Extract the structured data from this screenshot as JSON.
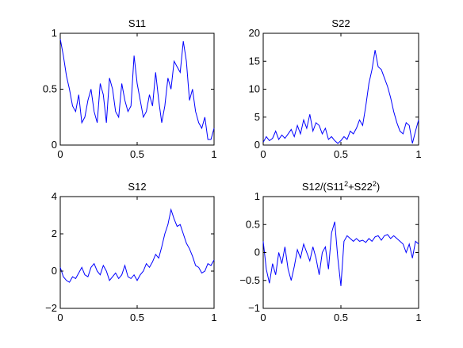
{
  "chart_data": [
    {
      "type": "line",
      "title": "S11",
      "xlim": [
        0,
        1
      ],
      "ylim": [
        0,
        1
      ],
      "xticks": [
        "0",
        "0.5",
        "1"
      ],
      "yticks": [
        "0",
        "0.5",
        "1"
      ],
      "color": "#0000ff",
      "x": [
        0,
        0.02,
        0.04,
        0.06,
        0.08,
        0.1,
        0.12,
        0.14,
        0.16,
        0.18,
        0.2,
        0.22,
        0.24,
        0.26,
        0.28,
        0.3,
        0.32,
        0.34,
        0.36,
        0.38,
        0.4,
        0.42,
        0.44,
        0.46,
        0.48,
        0.5,
        0.52,
        0.54,
        0.56,
        0.58,
        0.6,
        0.62,
        0.64,
        0.66,
        0.68,
        0.7,
        0.72,
        0.74,
        0.76,
        0.78,
        0.8,
        0.82,
        0.84,
        0.86,
        0.88,
        0.9,
        0.92,
        0.94,
        0.96,
        0.98,
        1.0
      ],
      "y": [
        0.95,
        0.8,
        0.62,
        0.5,
        0.35,
        0.3,
        0.45,
        0.2,
        0.25,
        0.4,
        0.5,
        0.3,
        0.2,
        0.55,
        0.45,
        0.2,
        0.6,
        0.5,
        0.3,
        0.25,
        0.55,
        0.4,
        0.3,
        0.35,
        0.8,
        0.55,
        0.4,
        0.25,
        0.3,
        0.45,
        0.35,
        0.65,
        0.4,
        0.2,
        0.35,
        0.6,
        0.5,
        0.75,
        0.7,
        0.65,
        0.93,
        0.75,
        0.4,
        0.5,
        0.3,
        0.2,
        0.15,
        0.25,
        0.05,
        0.05,
        0.15
      ]
    },
    {
      "type": "line",
      "title": "S22",
      "xlim": [
        0,
        1
      ],
      "ylim": [
        0,
        20
      ],
      "xticks": [
        "0",
        "0.5",
        "1"
      ],
      "yticks": [
        "0",
        "5",
        "10",
        "15",
        "20"
      ],
      "color": "#0000ff",
      "x": [
        0,
        0.02,
        0.04,
        0.06,
        0.08,
        0.1,
        0.12,
        0.14,
        0.16,
        0.18,
        0.2,
        0.22,
        0.24,
        0.26,
        0.28,
        0.3,
        0.32,
        0.34,
        0.36,
        0.38,
        0.4,
        0.42,
        0.44,
        0.46,
        0.48,
        0.5,
        0.52,
        0.54,
        0.56,
        0.58,
        0.6,
        0.62,
        0.64,
        0.66,
        0.68,
        0.7,
        0.72,
        0.74,
        0.76,
        0.78,
        0.8,
        0.82,
        0.84,
        0.86,
        0.88,
        0.9,
        0.92,
        0.94,
        0.96,
        0.98,
        1.0
      ],
      "y": [
        0.5,
        1.5,
        0.8,
        1.2,
        2.5,
        1.0,
        1.8,
        1.2,
        2.0,
        2.8,
        1.5,
        3.5,
        2.0,
        4.5,
        3.0,
        5.5,
        2.5,
        4.0,
        3.5,
        2.0,
        3.0,
        1.0,
        1.5,
        0.8,
        0.3,
        0.8,
        1.5,
        1.0,
        2.5,
        2.0,
        3.0,
        4.5,
        3.5,
        7.0,
        11.0,
        13.5,
        17.0,
        14.0,
        13.5,
        12.0,
        10.5,
        8.5,
        6.0,
        4.0,
        2.5,
        2.0,
        4.0,
        3.5,
        0.3,
        2.5,
        4.5
      ]
    },
    {
      "type": "line",
      "title": "S12",
      "xlim": [
        0,
        1
      ],
      "ylim": [
        -2,
        4
      ],
      "xticks": [
        "0",
        "0.5",
        "1"
      ],
      "yticks": [
        "−2",
        "0",
        "2",
        "4"
      ],
      "color": "#0000ff",
      "x": [
        0,
        0.02,
        0.04,
        0.06,
        0.08,
        0.1,
        0.12,
        0.14,
        0.16,
        0.18,
        0.2,
        0.22,
        0.24,
        0.26,
        0.28,
        0.3,
        0.32,
        0.34,
        0.36,
        0.38,
        0.4,
        0.42,
        0.44,
        0.46,
        0.48,
        0.5,
        0.52,
        0.54,
        0.56,
        0.58,
        0.6,
        0.62,
        0.64,
        0.66,
        0.68,
        0.7,
        0.72,
        0.74,
        0.76,
        0.78,
        0.8,
        0.82,
        0.84,
        0.86,
        0.88,
        0.9,
        0.92,
        0.94,
        0.96,
        0.98,
        1.0
      ],
      "y": [
        0.2,
        -0.3,
        -0.5,
        -0.6,
        -0.3,
        -0.4,
        -0.1,
        0.2,
        -0.2,
        -0.3,
        0.2,
        0.4,
        0.0,
        -0.2,
        0.3,
        0.0,
        -0.5,
        -0.3,
        -0.1,
        -0.4,
        -0.2,
        0.3,
        -0.3,
        -0.4,
        -0.2,
        -0.5,
        -0.2,
        0.0,
        0.4,
        0.2,
        0.5,
        0.9,
        0.7,
        1.3,
        2.0,
        2.5,
        3.3,
        2.8,
        2.4,
        2.5,
        2.0,
        1.5,
        1.2,
        0.8,
        0.3,
        0.2,
        -0.1,
        0.0,
        0.4,
        0.3,
        0.6
      ]
    },
    {
      "type": "line",
      "title": "S12/(S11²+S22²)",
      "xlim": [
        0,
        1
      ],
      "ylim": [
        -1,
        1
      ],
      "xticks": [
        "0",
        "0.5",
        "1"
      ],
      "yticks": [
        "−1",
        "−0.5",
        "0",
        "0.5",
        "1"
      ],
      "color": "#0000ff",
      "x": [
        0,
        0.02,
        0.04,
        0.06,
        0.08,
        0.1,
        0.12,
        0.14,
        0.16,
        0.18,
        0.2,
        0.22,
        0.24,
        0.26,
        0.28,
        0.3,
        0.32,
        0.34,
        0.36,
        0.38,
        0.4,
        0.42,
        0.44,
        0.46,
        0.48,
        0.5,
        0.52,
        0.54,
        0.56,
        0.58,
        0.6,
        0.62,
        0.64,
        0.66,
        0.68,
        0.7,
        0.72,
        0.74,
        0.76,
        0.78,
        0.8,
        0.82,
        0.84,
        0.86,
        0.88,
        0.9,
        0.92,
        0.94,
        0.96,
        0.98,
        1.0
      ],
      "y": [
        0.2,
        -0.3,
        -0.55,
        -0.2,
        -0.4,
        0.0,
        -0.2,
        0.1,
        -0.3,
        -0.5,
        -0.25,
        0.05,
        -0.1,
        0.15,
        0.0,
        -0.15,
        0.1,
        -0.1,
        -0.4,
        0.0,
        0.1,
        -0.3,
        0.35,
        0.55,
        -0.1,
        -0.6,
        0.2,
        0.3,
        0.25,
        0.2,
        0.25,
        0.2,
        0.22,
        0.18,
        0.25,
        0.2,
        0.28,
        0.3,
        0.22,
        0.3,
        0.32,
        0.25,
        0.3,
        0.25,
        0.2,
        0.15,
        0.0,
        0.15,
        -0.1,
        0.2,
        0.15
      ]
    }
  ]
}
